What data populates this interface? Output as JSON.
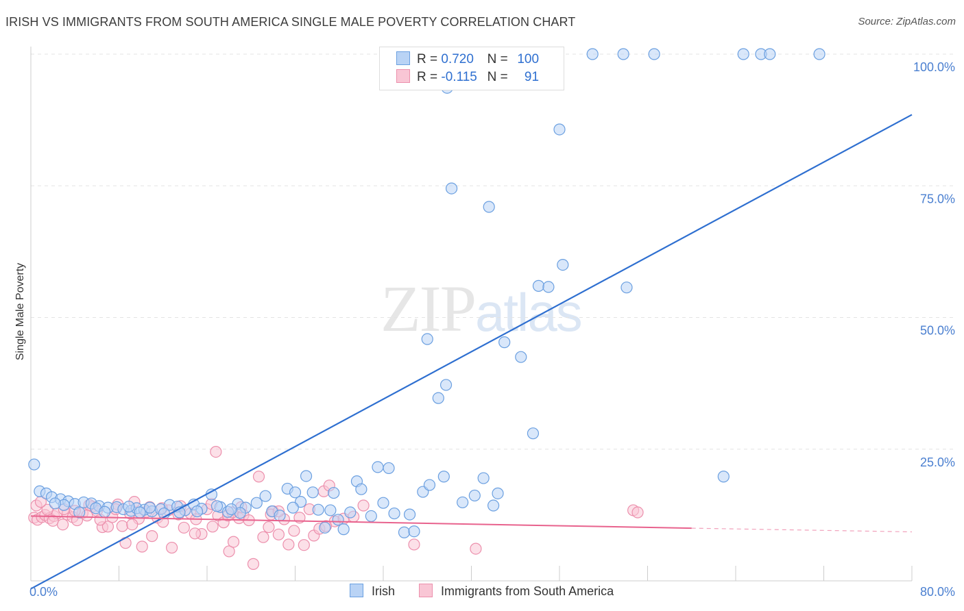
{
  "title": "IRISH VS IMMIGRANTS FROM SOUTH AMERICA SINGLE MALE POVERTY CORRELATION CHART",
  "source": "Source: ZipAtlas.com",
  "watermark": {
    "zip": "ZIP",
    "atlas": "atlas"
  },
  "legend": {
    "rows": [
      {
        "r_label": "R =",
        "r_value": "0.720",
        "n_label": "N =",
        "n_value": "100"
      },
      {
        "r_label": "R =",
        "r_value": "-0.115",
        "n_label": "N =",
        "n_value": "91"
      }
    ]
  },
  "bottom_legend": [
    "Irish",
    "Immigrants from South America"
  ],
  "colors": {
    "irish_fill": "#b9d3f5",
    "irish_stroke": "#6a9fe0",
    "irish_line": "#2e6fd0",
    "sa_fill": "#f9c6d5",
    "sa_stroke": "#ec8fac",
    "sa_line": "#e8628d",
    "grid": "#e3e3e3",
    "tick_text": "#4a7fd0"
  },
  "chart_data": {
    "type": "scatter",
    "title": "IRISH VS IMMIGRANTS FROM SOUTH AMERICA SINGLE MALE POVERTY CORRELATION CHART",
    "xlabel": "",
    "ylabel": "Single Male Poverty",
    "xlim": [
      0,
      80
    ],
    "ylim": [
      0,
      100
    ],
    "x_tick_labels": [
      "0.0%",
      "80.0%"
    ],
    "y_ticks": [
      25,
      50,
      75,
      100
    ],
    "y_tick_labels": [
      "25.0%",
      "50.0%",
      "75.0%",
      "100.0%"
    ],
    "grid": "horizontal dashed",
    "legend_position": "top-center",
    "series": [
      {
        "name": "Irish",
        "R": 0.72,
        "N": 100,
        "trend": {
          "x": [
            0,
            80
          ],
          "y": [
            -1.5,
            88.5
          ]
        },
        "points": [
          [
            0.3,
            22.1
          ],
          [
            0.8,
            17.0
          ],
          [
            1.4,
            16.6
          ],
          [
            1.9,
            15.9
          ],
          [
            2.7,
            15.5
          ],
          [
            3.4,
            15.1
          ],
          [
            4.0,
            14.6
          ],
          [
            4.8,
            14.9
          ],
          [
            5.5,
            14.7
          ],
          [
            6.2,
            14.2
          ],
          [
            7.0,
            13.9
          ],
          [
            7.8,
            14.0
          ],
          [
            8.4,
            13.6
          ],
          [
            9.1,
            13.3
          ],
          [
            9.6,
            13.8
          ],
          [
            10.3,
            13.5
          ],
          [
            11.0,
            13.2
          ],
          [
            11.8,
            13.6
          ],
          [
            12.6,
            14.4
          ],
          [
            13.3,
            14.1
          ],
          [
            14.0,
            13.4
          ],
          [
            14.8,
            14.5
          ],
          [
            15.5,
            13.7
          ],
          [
            16.4,
            16.4
          ],
          [
            17.2,
            14.0
          ],
          [
            17.9,
            13.1
          ],
          [
            18.8,
            14.6
          ],
          [
            19.5,
            13.9
          ],
          [
            20.5,
            14.8
          ],
          [
            21.3,
            16.1
          ],
          [
            21.9,
            13.2
          ],
          [
            22.6,
            12.4
          ],
          [
            23.3,
            17.5
          ],
          [
            24.5,
            15.0
          ],
          [
            25.0,
            19.9
          ],
          [
            25.6,
            16.8
          ],
          [
            26.1,
            13.5
          ],
          [
            26.7,
            10.1
          ],
          [
            27.2,
            13.4
          ],
          [
            27.9,
            11.6
          ],
          [
            28.4,
            9.8
          ],
          [
            29.6,
            18.9
          ],
          [
            30.0,
            17.4
          ],
          [
            31.5,
            21.6
          ],
          [
            32.5,
            21.4
          ],
          [
            32.0,
            14.8
          ],
          [
            33.0,
            12.8
          ],
          [
            33.9,
            9.2
          ],
          [
            34.8,
            9.4
          ],
          [
            35.6,
            16.9
          ],
          [
            36.2,
            18.2
          ],
          [
            37.5,
            19.8
          ],
          [
            37.0,
            34.7
          ],
          [
            37.7,
            37.2
          ],
          [
            39.2,
            14.9
          ],
          [
            40.3,
            16.2
          ],
          [
            41.1,
            19.5
          ],
          [
            42.0,
            14.3
          ],
          [
            42.4,
            16.6
          ],
          [
            43.0,
            45.3
          ],
          [
            44.5,
            42.5
          ],
          [
            45.6,
            28.0
          ],
          [
            46.1,
            56.0
          ],
          [
            47.0,
            55.8
          ],
          [
            48.3,
            60.0
          ],
          [
            48.0,
            85.7
          ],
          [
            54.1,
            55.7
          ],
          [
            36.0,
            45.9
          ],
          [
            38.2,
            74.5
          ],
          [
            41.6,
            71.0
          ],
          [
            37.8,
            93.6
          ],
          [
            42.7,
            100
          ],
          [
            51.0,
            100
          ],
          [
            53.8,
            100
          ],
          [
            56.6,
            100
          ],
          [
            64.7,
            100
          ],
          [
            66.3,
            100
          ],
          [
            67.1,
            100
          ],
          [
            71.6,
            100
          ],
          [
            62.9,
            19.8
          ],
          [
            3.0,
            14.4
          ],
          [
            5.9,
            13.8
          ],
          [
            10.8,
            13.9
          ],
          [
            13.5,
            13.0
          ],
          [
            16.9,
            14.2
          ],
          [
            19.0,
            12.9
          ],
          [
            6.7,
            13.1
          ],
          [
            8.9,
            14.1
          ],
          [
            12.1,
            12.8
          ],
          [
            15.1,
            13.2
          ],
          [
            24.0,
            16.8
          ],
          [
            27.5,
            16.7
          ],
          [
            29.0,
            13.0
          ],
          [
            30.9,
            12.3
          ],
          [
            2.2,
            14.7
          ],
          [
            4.4,
            13.0
          ],
          [
            9.9,
            13.0
          ],
          [
            18.2,
            13.6
          ],
          [
            23.8,
            13.9
          ],
          [
            34.4,
            12.6
          ]
        ]
      },
      {
        "name": "Immigrants from South America",
        "R": -0.115,
        "N": 91,
        "trend": {
          "x": [
            0,
            60
          ],
          "y": [
            12.3,
            10.0
          ],
          "dashed_extension": {
            "x": [
              60,
              80
            ],
            "y": [
              10.0,
              9.3
            ]
          }
        },
        "points": [
          [
            0.3,
            12.0
          ],
          [
            0.6,
            11.6
          ],
          [
            1.0,
            12.1
          ],
          [
            1.3,
            12.5
          ],
          [
            1.7,
            11.9
          ],
          [
            2.1,
            12.3
          ],
          [
            2.4,
            12.8
          ],
          [
            2.9,
            10.7
          ],
          [
            3.3,
            12.6
          ],
          [
            3.8,
            12.1
          ],
          [
            4.2,
            11.5
          ],
          [
            4.7,
            12.9
          ],
          [
            5.1,
            12.4
          ],
          [
            5.6,
            14.1
          ],
          [
            6.0,
            13.3
          ],
          [
            6.5,
            10.2
          ],
          [
            7.0,
            10.3
          ],
          [
            7.4,
            12.1
          ],
          [
            7.9,
            14.5
          ],
          [
            8.3,
            10.4
          ],
          [
            8.6,
            7.2
          ],
          [
            9.0,
            12.8
          ],
          [
            9.4,
            15.0
          ],
          [
            9.8,
            11.8
          ],
          [
            10.1,
            6.5
          ],
          [
            10.5,
            13.1
          ],
          [
            11.0,
            8.5
          ],
          [
            11.5,
            12.0
          ],
          [
            12.0,
            11.2
          ],
          [
            12.5,
            13.4
          ],
          [
            12.8,
            6.3
          ],
          [
            13.4,
            12.6
          ],
          [
            13.9,
            10.1
          ],
          [
            14.5,
            12.8
          ],
          [
            15.0,
            11.7
          ],
          [
            15.5,
            8.9
          ],
          [
            16.0,
            13.6
          ],
          [
            16.5,
            10.3
          ],
          [
            17.0,
            12.4
          ],
          [
            17.5,
            11.1
          ],
          [
            18.0,
            5.6
          ],
          [
            18.4,
            7.4
          ],
          [
            18.9,
            11.9
          ],
          [
            19.3,
            12.5
          ],
          [
            19.8,
            11.5
          ],
          [
            20.2,
            3.2
          ],
          [
            20.7,
            19.8
          ],
          [
            21.1,
            8.3
          ],
          [
            21.6,
            10.2
          ],
          [
            22.0,
            13.2
          ],
          [
            22.5,
            8.8
          ],
          [
            23.0,
            11.7
          ],
          [
            23.4,
            6.9
          ],
          [
            23.9,
            9.5
          ],
          [
            24.4,
            12.0
          ],
          [
            24.8,
            6.8
          ],
          [
            25.3,
            13.6
          ],
          [
            25.7,
            8.6
          ],
          [
            26.2,
            9.9
          ],
          [
            26.6,
            17.0
          ],
          [
            27.1,
            18.1
          ],
          [
            27.6,
            11.3
          ],
          [
            28.4,
            11.8
          ],
          [
            29.3,
            12.2
          ],
          [
            30.2,
            14.3
          ],
          [
            34.8,
            6.9
          ],
          [
            40.4,
            6.1
          ],
          [
            54.7,
            13.4
          ],
          [
            55.1,
            13.0
          ],
          [
            0.5,
            14.3
          ],
          [
            1.5,
            13.5
          ],
          [
            3.0,
            13.6
          ],
          [
            5.3,
            14.4
          ],
          [
            7.7,
            13.6
          ],
          [
            10.8,
            14.0
          ],
          [
            13.6,
            14.2
          ],
          [
            16.4,
            14.6
          ],
          [
            17.9,
            12.4
          ],
          [
            19.1,
            14.0
          ],
          [
            21.8,
            12.6
          ],
          [
            0.9,
            15.0
          ],
          [
            2.0,
            11.4
          ],
          [
            4.0,
            13.3
          ],
          [
            6.3,
            11.6
          ],
          [
            9.2,
            10.7
          ],
          [
            11.9,
            13.8
          ],
          [
            14.9,
            9.0
          ],
          [
            16.8,
            24.5
          ],
          [
            18.3,
            13.0
          ],
          [
            26.8,
            10.4
          ],
          [
            22.5,
            13.2
          ]
        ]
      }
    ]
  }
}
